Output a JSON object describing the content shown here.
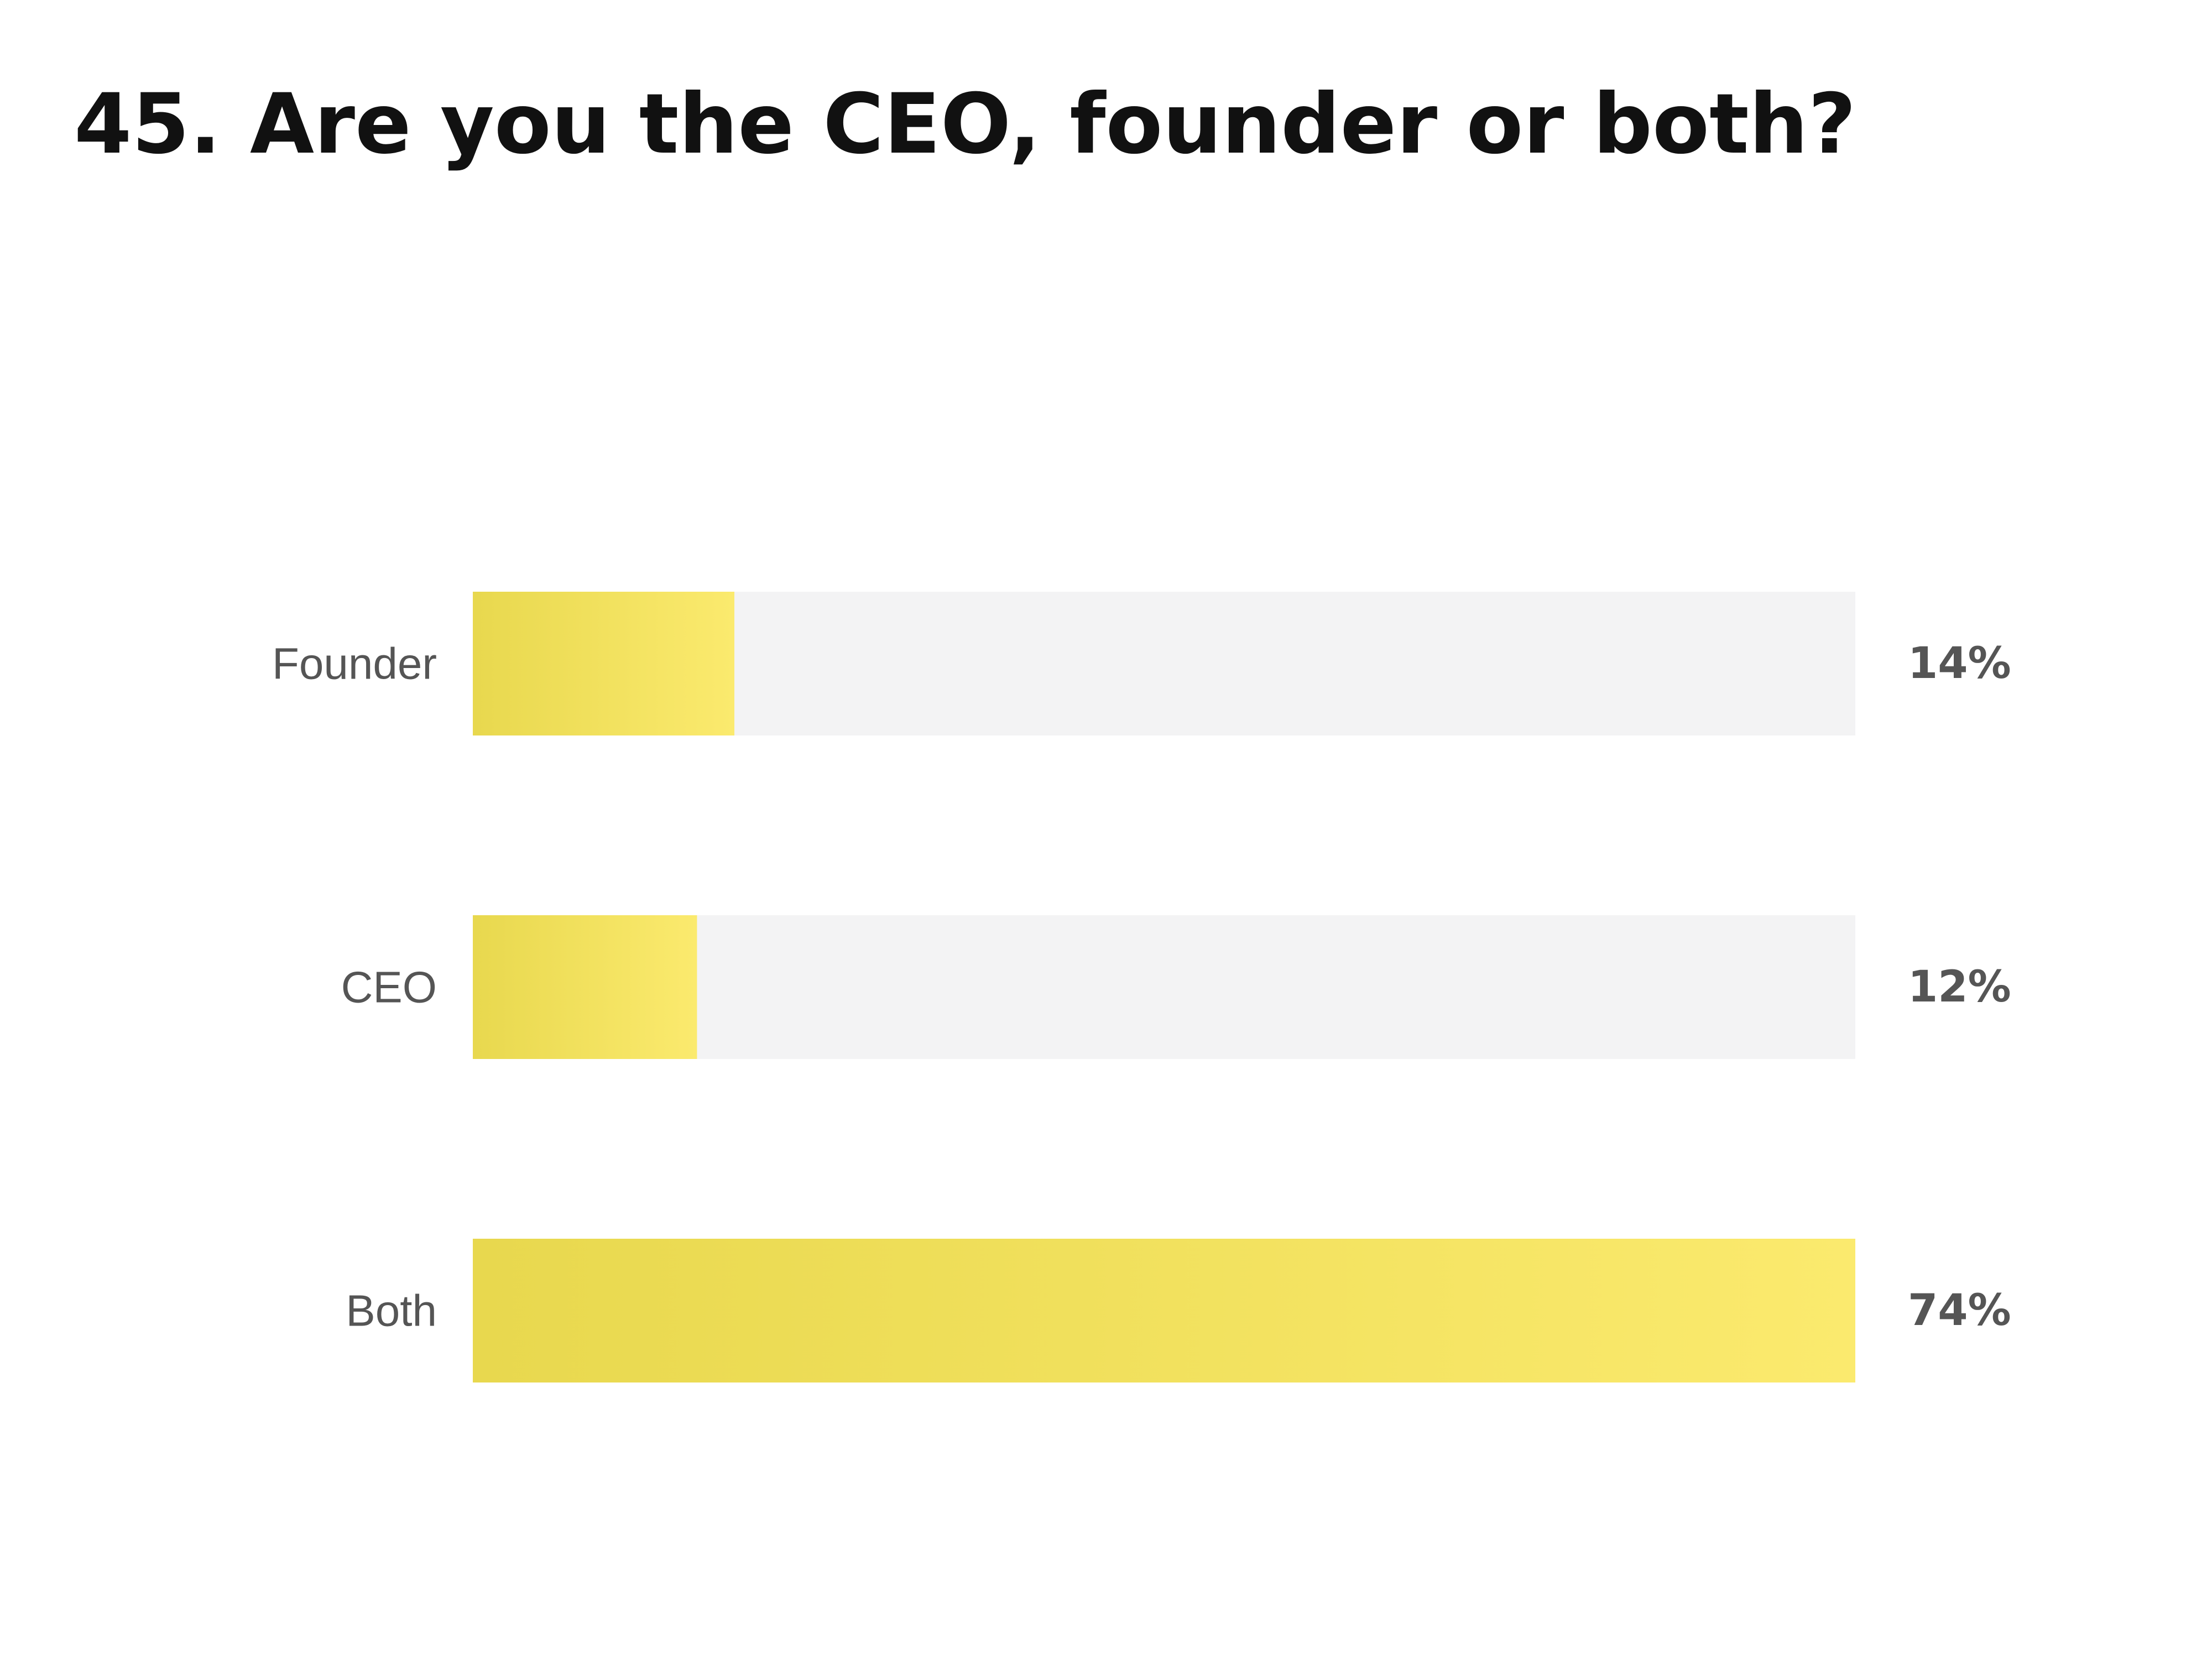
{
  "chart_data": {
    "type": "bar",
    "orientation": "horizontal",
    "title": "45. Are you the CEO, founder or both?",
    "categories": [
      "Founder",
      "CEO",
      "Both"
    ],
    "values": [
      14,
      12,
      74
    ],
    "value_labels": [
      "14%",
      "12%",
      "74%"
    ],
    "xlabel": "",
    "ylabel": "",
    "xlim": [
      0,
      74
    ],
    "grid": false,
    "legend": "none",
    "colors": {
      "bar_start": "#E8D84E",
      "bar_end": "#FBEA6E",
      "track": "#F3F3F4",
      "label": "#555555",
      "title": "#111111"
    }
  }
}
